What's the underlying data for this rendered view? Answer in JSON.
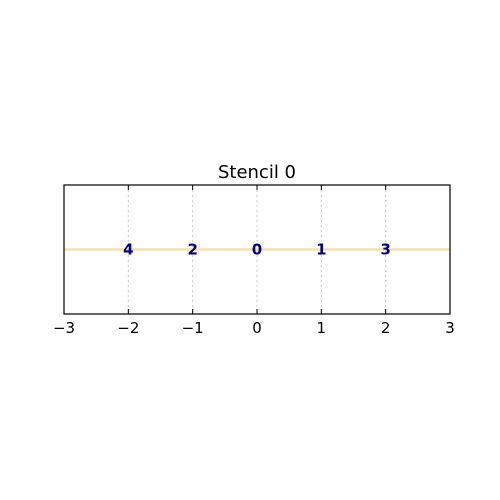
{
  "chart_data": {
    "type": "scatter",
    "title": "Stencil 0",
    "xlabel": "",
    "ylabel": "",
    "xlim": [
      -3,
      3
    ],
    "ylim": [
      -1,
      1
    ],
    "x_ticks": [
      -3,
      -2,
      -1,
      0,
      1,
      2,
      3
    ],
    "x_tick_labels": [
      "−3",
      "−2",
      "−1",
      "0",
      "1",
      "2",
      "3"
    ],
    "grid": "vertical dotted",
    "baseline": {
      "y": 0,
      "color": "#f5deb3"
    },
    "points": [
      {
        "x": -2,
        "y": 0,
        "label": "4"
      },
      {
        "x": -1,
        "y": 0,
        "label": "2"
      },
      {
        "x": 0,
        "y": 0,
        "label": "0"
      },
      {
        "x": 1,
        "y": 0,
        "label": "1"
      },
      {
        "x": 2,
        "y": 0,
        "label": "3"
      }
    ],
    "label_color": "#000080",
    "grid_color": "#c8c8c8"
  }
}
